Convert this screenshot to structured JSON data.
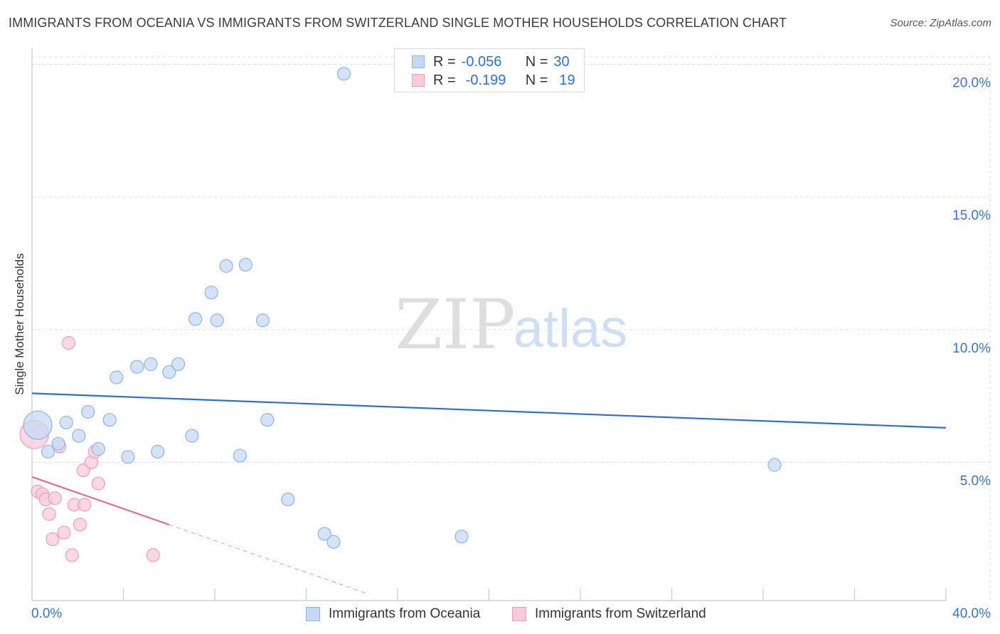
{
  "title": "IMMIGRANTS FROM OCEANIA VS IMMIGRANTS FROM SWITZERLAND SINGLE MOTHER HOUSEHOLDS CORRELATION CHART",
  "source": "Source: ZipAtlas.com",
  "watermark": {
    "zip": "ZIP",
    "atlas": "atlas"
  },
  "colors": {
    "oceania_fill": "#c5d9f3",
    "oceania_stroke": "#8fb3e6",
    "oceania_line": "#2f6fc6",
    "swiss_fill": "#f9cbd9",
    "swiss_stroke": "#ee9db6",
    "swiss_line": "#e06a93",
    "axis_label": "#3b72c9",
    "grid": "#dcdcdc"
  },
  "legend_top": {
    "rows": [
      {
        "r_label": "R =",
        "r_value": "-0.056",
        "n_label": "N =",
        "n_value": "30"
      },
      {
        "r_label": "R =",
        "r_value": "-0.199",
        "n_label": "N =",
        "n_value": "19"
      }
    ]
  },
  "bottom_legend": {
    "oceania": "Immigrants from Oceania",
    "switzerland": "Immigrants from Switzerland"
  },
  "chart_data": {
    "type": "scatter",
    "title": "IMMIGRANTS FROM OCEANIA VS IMMIGRANTS FROM SWITZERLAND SINGLE MOTHER HOUSEHOLDS CORRELATION CHART",
    "xlabel": "",
    "ylabel": "Single Mother Households",
    "xlim": [
      0,
      40
    ],
    "ylim": [
      0,
      20.5
    ],
    "x_tick_labels": [
      "0.0%",
      "40.0%"
    ],
    "y_ticks": [
      5,
      10,
      15,
      20
    ],
    "y_tick_labels": [
      "5.0%",
      "10.0%",
      "15.0%",
      "20.0%"
    ],
    "series": [
      {
        "name": "Immigrants from Oceania",
        "points": [
          {
            "x": 0.25,
            "y": 6.4,
            "big": true
          },
          {
            "x": 0.7,
            "y": 5.4
          },
          {
            "x": 1.15,
            "y": 5.7
          },
          {
            "x": 1.5,
            "y": 6.5
          },
          {
            "x": 2.05,
            "y": 6.0
          },
          {
            "x": 2.45,
            "y": 6.9
          },
          {
            "x": 2.9,
            "y": 5.5
          },
          {
            "x": 3.4,
            "y": 6.6
          },
          {
            "x": 3.7,
            "y": 8.2
          },
          {
            "x": 4.2,
            "y": 5.2
          },
          {
            "x": 4.6,
            "y": 8.6
          },
          {
            "x": 5.2,
            "y": 8.7
          },
          {
            "x": 5.5,
            "y": 5.4
          },
          {
            "x": 6.0,
            "y": 8.4
          },
          {
            "x": 6.4,
            "y": 8.7
          },
          {
            "x": 7.0,
            "y": 6.0
          },
          {
            "x": 7.15,
            "y": 10.4
          },
          {
            "x": 8.1,
            "y": 10.35
          },
          {
            "x": 8.5,
            "y": 12.4
          },
          {
            "x": 7.85,
            "y": 11.4
          },
          {
            "x": 9.35,
            "y": 12.45
          },
          {
            "x": 9.1,
            "y": 5.25
          },
          {
            "x": 10.1,
            "y": 10.35
          },
          {
            "x": 10.3,
            "y": 6.6
          },
          {
            "x": 11.2,
            "y": 3.6
          },
          {
            "x": 12.8,
            "y": 2.3
          },
          {
            "x": 13.2,
            "y": 2.0
          },
          {
            "x": 13.65,
            "y": 19.65
          },
          {
            "x": 18.8,
            "y": 2.2
          },
          {
            "x": 32.5,
            "y": 4.9
          }
        ],
        "trend": {
          "x0": 0,
          "y0": 7.6,
          "x1": 40,
          "y1": 6.3
        }
      },
      {
        "name": "Immigrants from Switzerland",
        "points": [
          {
            "x": 0.1,
            "y": 6.05,
            "big": true
          },
          {
            "x": 0.25,
            "y": 3.9
          },
          {
            "x": 0.45,
            "y": 3.8
          },
          {
            "x": 0.6,
            "y": 3.6
          },
          {
            "x": 0.75,
            "y": 3.05
          },
          {
            "x": 0.9,
            "y": 2.1
          },
          {
            "x": 1.0,
            "y": 3.65
          },
          {
            "x": 1.2,
            "y": 5.6
          },
          {
            "x": 1.4,
            "y": 2.35
          },
          {
            "x": 1.6,
            "y": 9.5
          },
          {
            "x": 1.75,
            "y": 1.5
          },
          {
            "x": 1.85,
            "y": 3.4
          },
          {
            "x": 2.1,
            "y": 2.65
          },
          {
            "x": 2.25,
            "y": 4.7
          },
          {
            "x": 2.3,
            "y": 3.4
          },
          {
            "x": 2.6,
            "y": 5.0
          },
          {
            "x": 2.75,
            "y": 5.4
          },
          {
            "x": 2.9,
            "y": 4.2
          },
          {
            "x": 5.3,
            "y": 1.5
          }
        ],
        "trend": {
          "x0": 0,
          "y0": 4.45,
          "x1": 6.0,
          "y1": 2.65,
          "dash_to_x": 14.6
        }
      }
    ]
  }
}
